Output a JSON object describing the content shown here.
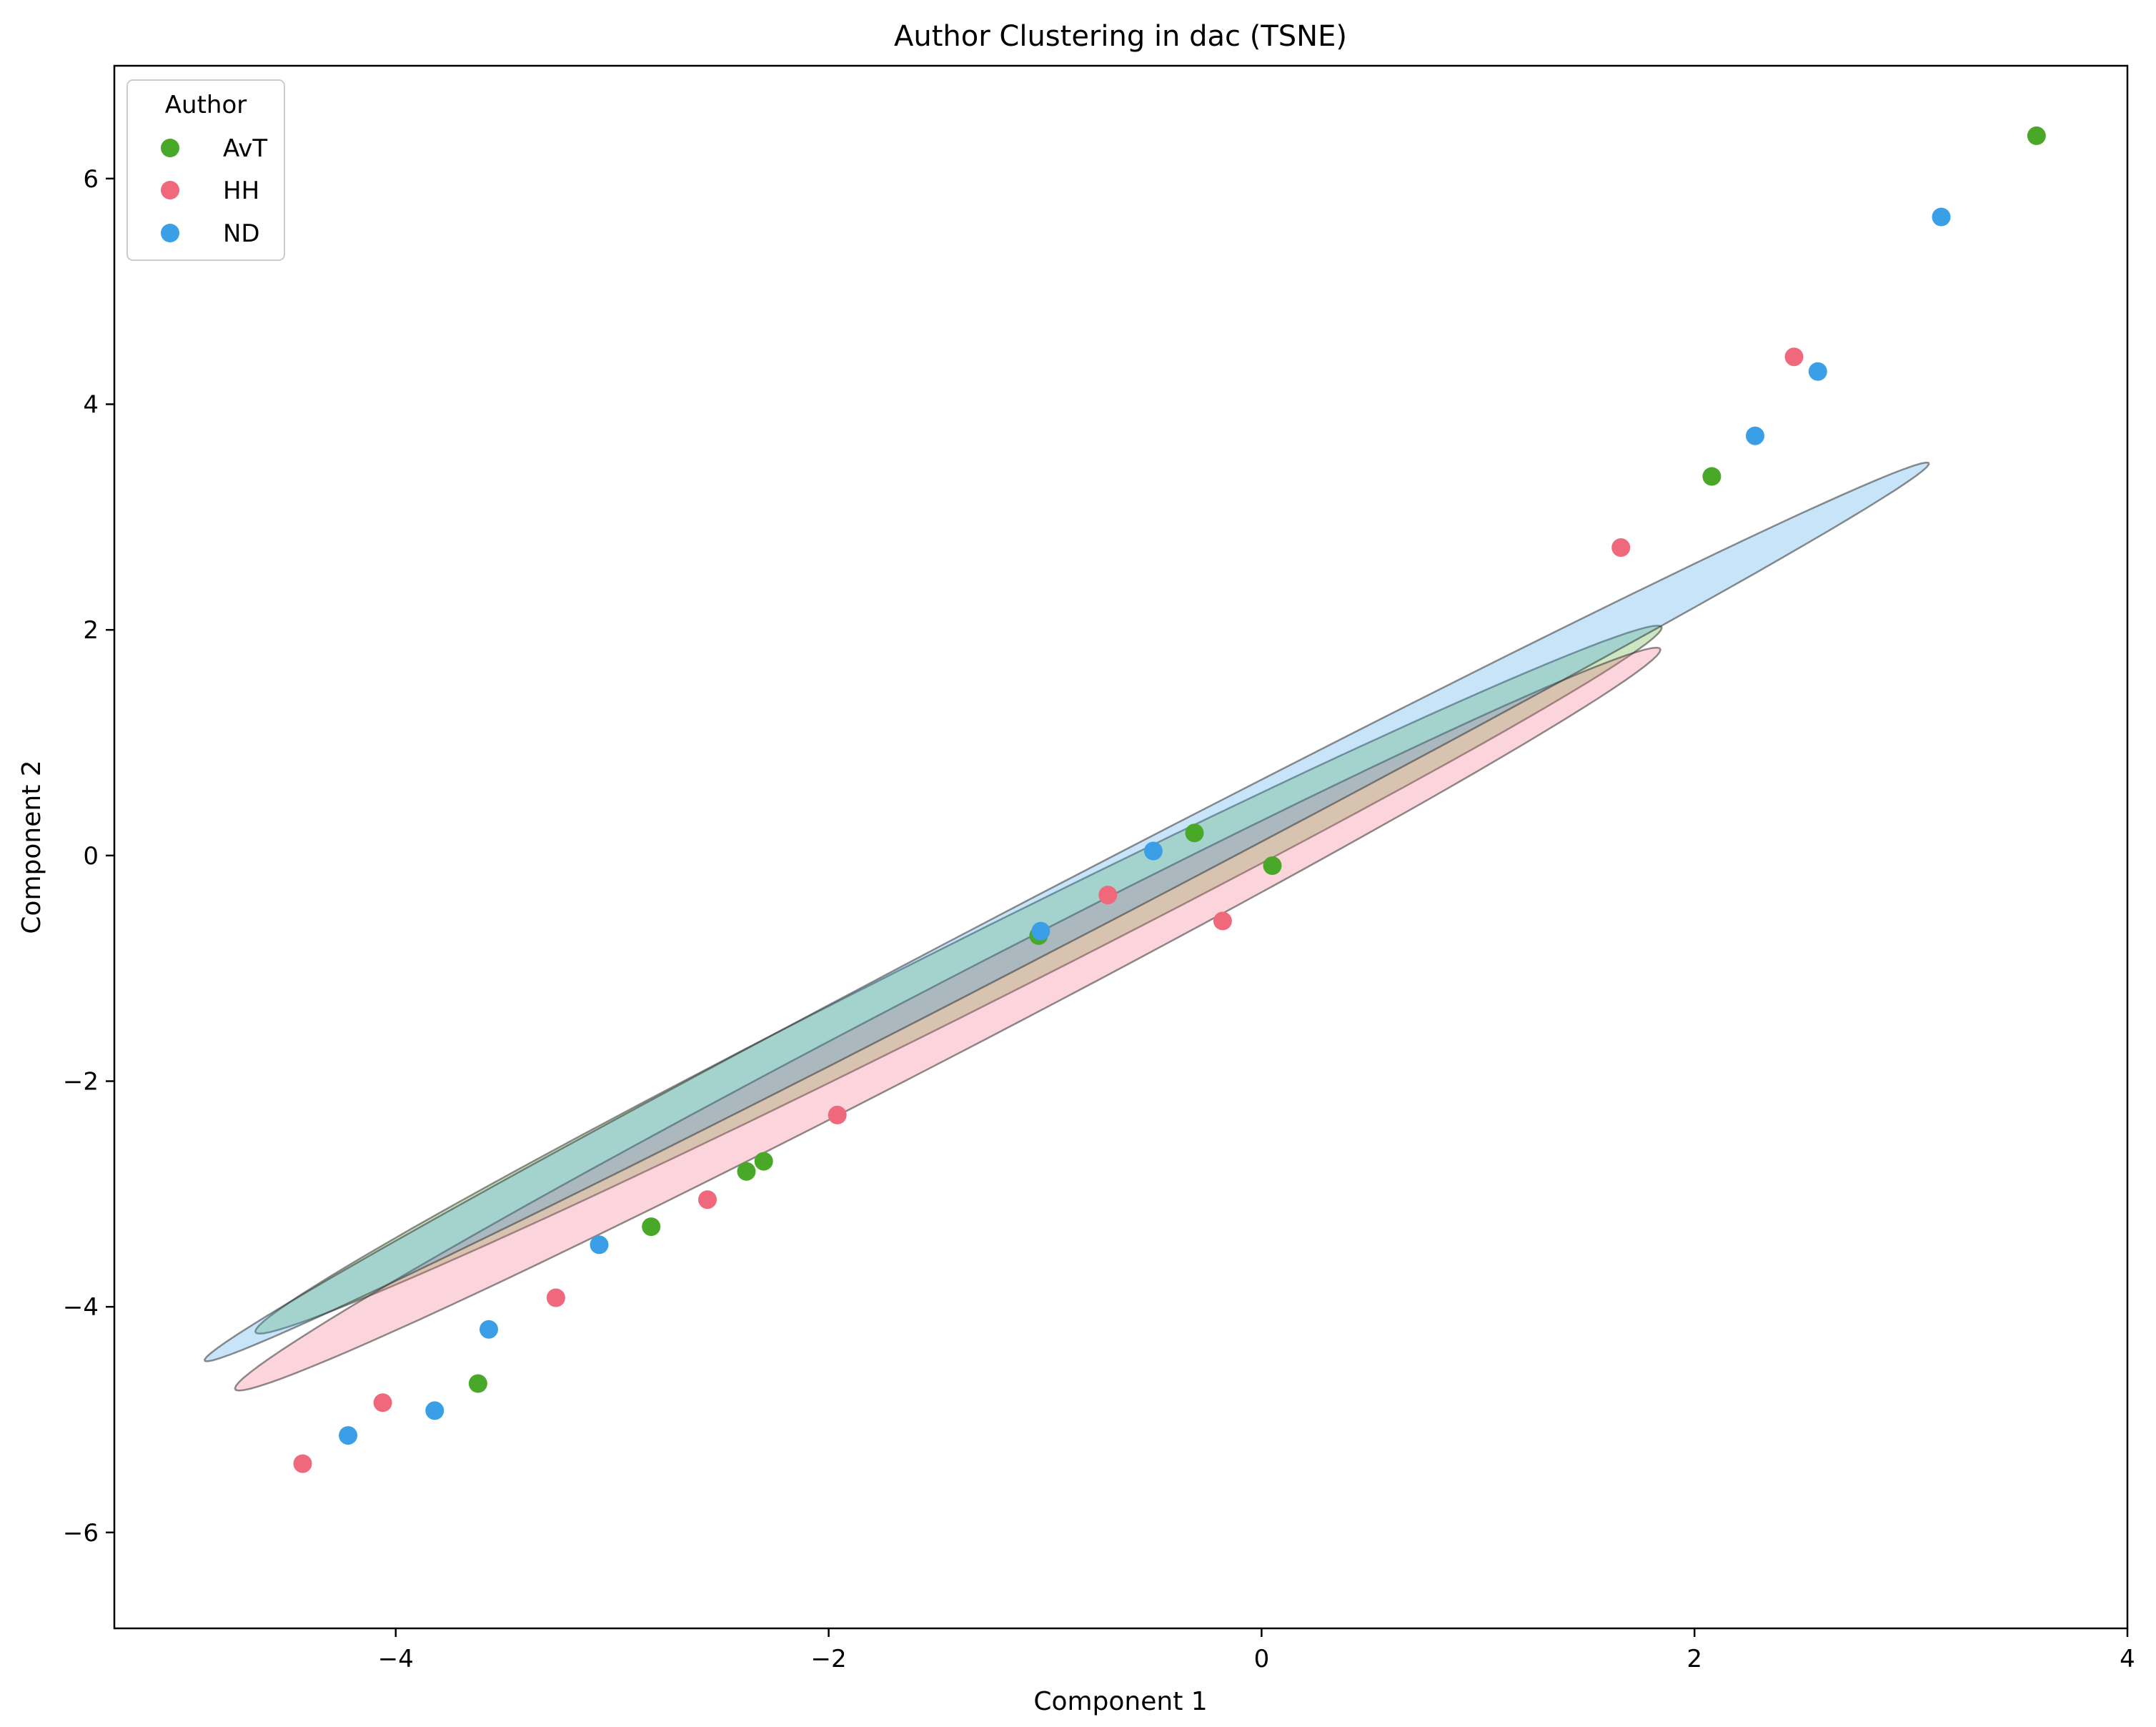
{
  "chart_data": {
    "type": "scatter",
    "title": "Author Clustering in dac (TSNE)",
    "xlabel": "Component 1",
    "ylabel": "Component 2",
    "xlim": [
      -5.3,
      4.0
    ],
    "ylim": [
      -6.85,
      7.0
    ],
    "xticks": [
      -4,
      -2,
      0,
      2,
      4
    ],
    "yticks": [
      -6,
      -4,
      -2,
      0,
      2,
      4,
      6
    ],
    "xtick_labels": [
      "−4",
      "−2",
      "0",
      "2",
      "4"
    ],
    "ytick_labels": [
      "−6",
      "−4",
      "−2",
      "0",
      "2",
      "4",
      "6"
    ],
    "grid": false,
    "legend": {
      "title": "Author",
      "placement": "top-left"
    },
    "series": [
      {
        "name": "AvT",
        "color": "#4aa829",
        "points": [
          [
            3.58,
            6.38
          ],
          [
            2.08,
            3.36
          ],
          [
            0.05,
            -0.09
          ],
          [
            -0.31,
            0.2
          ],
          [
            -1.03,
            -0.71
          ],
          [
            -2.3,
            -2.71
          ],
          [
            -2.38,
            -2.8
          ],
          [
            -2.82,
            -3.29
          ],
          [
            -3.62,
            -4.68
          ]
        ],
        "ellipse": {
          "center": [
            -1.4,
            -1.1
          ],
          "semi_major": 4.51,
          "semi_minor": 0.25,
          "angle_deg": 44.0
        }
      },
      {
        "name": "HH",
        "color": "#f0687c",
        "points": [
          [
            2.46,
            4.42
          ],
          [
            1.66,
            2.73
          ],
          [
            -0.18,
            -0.58
          ],
          [
            -0.71,
            -0.35
          ],
          [
            -1.96,
            -2.3
          ],
          [
            -2.56,
            -3.05
          ],
          [
            -3.26,
            -3.92
          ],
          [
            -4.06,
            -4.85
          ],
          [
            -4.43,
            -5.39
          ]
        ],
        "ellipse": {
          "center": [
            -1.45,
            -1.45
          ],
          "semi_major": 4.65,
          "semi_minor": 0.25,
          "angle_deg": 45.0
        }
      },
      {
        "name": "ND",
        "color": "#3a9fe6",
        "points": [
          [
            3.14,
            5.66
          ],
          [
            2.57,
            4.29
          ],
          [
            2.28,
            3.72
          ],
          [
            -0.5,
            0.04
          ],
          [
            -1.02,
            -0.67
          ],
          [
            -3.06,
            -3.45
          ],
          [
            -3.57,
            -4.2
          ],
          [
            -3.82,
            -4.92
          ],
          [
            -4.22,
            -5.14
          ]
        ],
        "ellipse": {
          "center": [
            -0.9,
            -0.5
          ],
          "semi_major": 5.63,
          "semi_minor": 0.2,
          "angle_deg": 45.0
        }
      }
    ]
  }
}
